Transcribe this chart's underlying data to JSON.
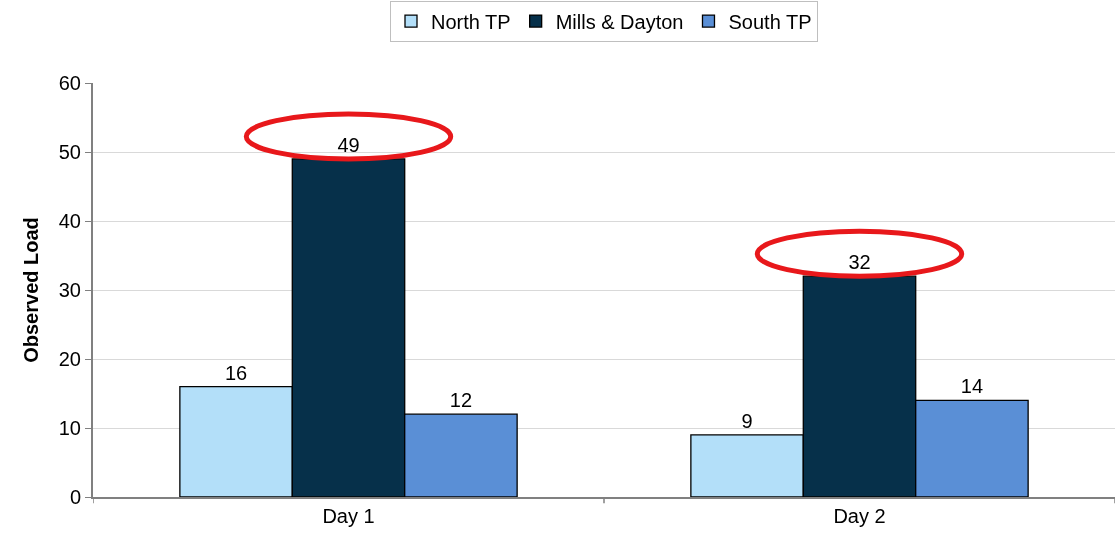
{
  "chart_data": {
    "type": "bar",
    "ylabel": "Observed Load",
    "categories": [
      "Day 1",
      "Day 2"
    ],
    "series": [
      {
        "name": "North TP",
        "color": "#b3dff9",
        "values": [
          16,
          9
        ]
      },
      {
        "name": "Mills & Dayton",
        "color": "#06304a",
        "values": [
          49,
          32
        ]
      },
      {
        "name": "South TP",
        "color": "#5a8fd6",
        "values": [
          12,
          14
        ]
      }
    ],
    "ylim": [
      0,
      60
    ],
    "yticks": [
      0,
      10,
      20,
      30,
      40,
      50,
      60
    ],
    "grid": "y",
    "legend": "top",
    "data_labels": true
  }
}
